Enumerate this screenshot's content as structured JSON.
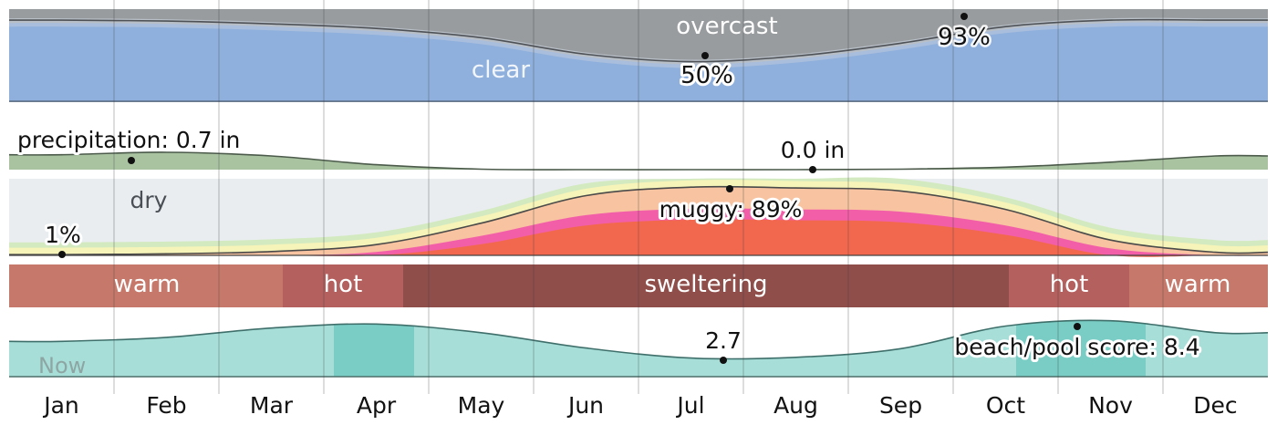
{
  "chart_data": [
    {
      "type": "area",
      "panel": "cloud cover",
      "x": [
        "Jan",
        "Feb",
        "Mar",
        "Apr",
        "May",
        "Jun",
        "Jul",
        "Aug",
        "Sep",
        "Oct",
        "Nov",
        "Dec"
      ],
      "series": [
        {
          "name": "clear",
          "values": [
            81,
            80,
            77,
            72,
            62,
            44,
            36,
            42,
            56,
            74,
            81,
            81
          ]
        },
        {
          "name": "overcast",
          "values": [
            19,
            20,
            23,
            28,
            38,
            56,
            64,
            58,
            44,
            26,
            19,
            19
          ]
        }
      ],
      "labels": {
        "clear": "clear",
        "overcast": "overcast"
      },
      "annotations": [
        {
          "key": "cloud_min",
          "x": "Jul",
          "y": 50,
          "label": "50%"
        },
        {
          "key": "cloud_max",
          "x": "Oct",
          "y": 93,
          "label": "93%"
        }
      ],
      "ylim": [
        0,
        100
      ],
      "color_clear": "#8fb0dc",
      "color_overcast": "#999c9f"
    },
    {
      "type": "area",
      "panel": "precipitation",
      "x": [
        "Jan",
        "Feb",
        "Mar",
        "Apr",
        "May",
        "Jun",
        "Jul",
        "Aug",
        "Sep",
        "Oct",
        "Nov",
        "Dec"
      ],
      "values": [
        0.6,
        0.7,
        0.55,
        0.2,
        0.02,
        0.0,
        0.0,
        0.0,
        0.02,
        0.1,
        0.3,
        0.55
      ],
      "annotations": [
        {
          "key": "precip_max",
          "x": "Feb",
          "y": 0.7,
          "label": "precipitation: 0.7 in"
        },
        {
          "key": "precip_min",
          "x": "Aug",
          "y": 0.0,
          "label": "0.0 in"
        }
      ],
      "ylim": [
        0,
        2.5
      ],
      "color": "#a9c3a1"
    },
    {
      "type": "area",
      "panel": "humidity comfort",
      "x": [
        "Jan",
        "Feb",
        "Mar",
        "Apr",
        "May",
        "Jun",
        "Jul",
        "Aug",
        "Sep",
        "Oct",
        "Nov",
        "Dec"
      ],
      "series": [
        {
          "name": "muggy",
          "values": [
            1,
            2,
            5,
            14,
            42,
            78,
            89,
            88,
            84,
            60,
            20,
            4
          ]
        }
      ],
      "labels": {
        "dry": "dry"
      },
      "annotations": [
        {
          "key": "muggy_min",
          "x": "Jan",
          "y": 1,
          "label": "1%"
        },
        {
          "key": "muggy_max",
          "x": "Jul",
          "y": 89,
          "label": "muggy: 89%"
        }
      ],
      "ylim": [
        0,
        100
      ],
      "band_colors": [
        "#e9edf0",
        "#d3eac0",
        "#f6f4b8",
        "#f7c3a0",
        "#f25fa8",
        "#f2684e"
      ]
    },
    {
      "type": "table",
      "panel": "temperature category",
      "segments": [
        {
          "label": "warm",
          "start": "Jan",
          "end": "mid-Mar",
          "color": "#c6796b"
        },
        {
          "label": "hot",
          "start": "mid-Mar",
          "end": "late Apr",
          "color": "#b4605e"
        },
        {
          "label": "sweltering",
          "start": "late Apr",
          "end": "late Oct",
          "color": "#8f4e4a"
        },
        {
          "label": "hot",
          "start": "late Oct",
          "end": "early Dec",
          "color": "#b4605e"
        },
        {
          "label": "warm",
          "start": "early Dec",
          "end": "Dec",
          "color": "#c6796b"
        }
      ]
    },
    {
      "type": "area",
      "panel": "beach/pool score",
      "x": [
        "Jan",
        "Feb",
        "Mar",
        "Apr",
        "May",
        "Jun",
        "Jul",
        "Aug",
        "Sep",
        "Oct",
        "Nov",
        "Dec"
      ],
      "values": [
        5.3,
        5.9,
        7.3,
        7.9,
        6.6,
        4.3,
        2.8,
        2.9,
        4.2,
        7.6,
        8.4,
        6.6
      ],
      "annotations": [
        {
          "key": "beach_min",
          "x": "Jul",
          "y": 2.7,
          "label": "2.7"
        },
        {
          "key": "beach_max",
          "x": "Nov",
          "y": 8.4,
          "label": "beach/pool score: 8.4"
        }
      ],
      "ylim": [
        0,
        10
      ],
      "color": "#a7ded8",
      "highlight_color": "#79cdc5",
      "now_label": "Now"
    }
  ],
  "months": [
    "Jan",
    "Feb",
    "Mar",
    "Apr",
    "May",
    "Jun",
    "Jul",
    "Aug",
    "Sep",
    "Oct",
    "Nov",
    "Dec"
  ]
}
